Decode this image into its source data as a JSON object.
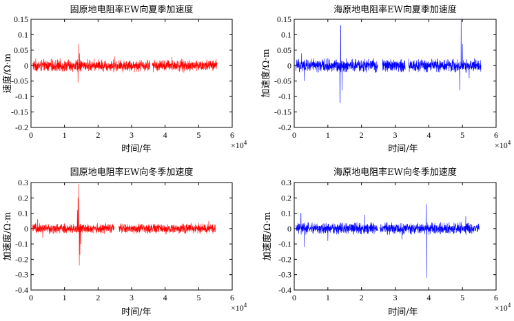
{
  "chart_data": [
    {
      "type": "line",
      "title": "固原地电阻率EW向夏季加速度",
      "xlabel": "时间/年",
      "ylabel": "速度/Ω·m",
      "x_multiplier": "×10",
      "x_multiplier_exp": "4",
      "xlim": [
        0,
        6
      ],
      "ylim": [
        -0.2,
        0.15
      ],
      "xticks": [
        "0",
        "1",
        "2",
        "3",
        "4",
        "5",
        "6"
      ],
      "yticks": [
        "0.15",
        "0.1",
        "0.05",
        "0",
        "-0.05",
        "-0.1",
        "-0.15",
        "-0.2"
      ],
      "color": "#ff0000",
      "series": [
        {
          "x_end": 5.55,
          "noise": 0.018,
          "gaps": [
            [
              3.55,
              3.62
            ]
          ],
          "spikes": [
            [
              1.42,
              0.07
            ],
            [
              1.4,
              -0.055
            ],
            [
              1.45,
              0.04
            ],
            [
              2.5,
              0.03
            ],
            [
              4.2,
              0.028
            ]
          ]
        }
      ]
    },
    {
      "type": "line",
      "title": "海原地电阻率EW向夏季加速度",
      "xlabel": "时间/年",
      "ylabel": "加速度/Ω·m",
      "x_multiplier": "×10",
      "x_multiplier_exp": "4",
      "xlim": [
        0,
        6
      ],
      "ylim": [
        -0.2,
        0.15
      ],
      "xticks": [
        "0",
        "1",
        "2",
        "3",
        "4",
        "5",
        "6"
      ],
      "yticks": [
        "0.15",
        "0.1",
        "0.05",
        "0",
        "-0.05",
        "-0.1",
        "-0.15",
        "-0.2"
      ],
      "color": "#0000ff",
      "series": [
        {
          "x_end": 5.55,
          "noise": 0.02,
          "gaps": [
            [
              2.48,
              2.62
            ],
            [
              3.3,
              3.4
            ]
          ],
          "spikes": [
            [
              1.38,
              0.13
            ],
            [
              1.36,
              -0.12
            ],
            [
              1.42,
              -0.08
            ],
            [
              4.96,
              0.15
            ],
            [
              4.92,
              -0.08
            ],
            [
              5.0,
              0.07
            ],
            [
              0.3,
              -0.05
            ],
            [
              0.22,
              0.04
            ],
            [
              5.2,
              -0.04
            ]
          ]
        }
      ]
    },
    {
      "type": "line",
      "title": "固原地电阻率EW向冬季加速度",
      "xlabel": "时间/年",
      "ylabel": "加速度/Ω·m",
      "x_multiplier": "×10",
      "x_multiplier_exp": "4",
      "xlim": [
        0,
        6
      ],
      "ylim": [
        -0.4,
        0.3
      ],
      "xticks": [
        "0",
        "1",
        "2",
        "3",
        "4",
        "5",
        "6"
      ],
      "yticks": [
        "0.3",
        "0.2",
        "0.1",
        "0",
        "-0.1",
        "-0.2",
        "-0.3",
        "-0.4"
      ],
      "color": "#ff0000",
      "series": [
        {
          "x_end": 5.5,
          "noise": 0.03,
          "gaps": [
            [
              2.48,
              2.62
            ]
          ],
          "spikes": [
            [
              1.42,
              0.29
            ],
            [
              1.44,
              -0.24
            ],
            [
              1.4,
              0.2
            ],
            [
              1.46,
              -0.17
            ],
            [
              1.38,
              0.12
            ],
            [
              1.48,
              -0.1
            ],
            [
              0.2,
              0.06
            ],
            [
              5.3,
              0.05
            ],
            [
              0.35,
              -0.06
            ]
          ]
        }
      ]
    },
    {
      "type": "line",
      "title": "海原地电阻率EW向冬季加速度",
      "xlabel": "时间/年",
      "ylabel": "加速度/Ω·m",
      "x_multiplier": "×10",
      "x_multiplier_exp": "4",
      "xlim": [
        0,
        6
      ],
      "ylim": [
        -0.4,
        0.3
      ],
      "xticks": [
        "0",
        "1",
        "2",
        "3",
        "4",
        "5",
        "6"
      ],
      "yticks": [
        "0.3",
        "0.2",
        "0.1",
        "0",
        "-0.1",
        "-0.2",
        "-0.3",
        "-0.4"
      ],
      "color": "#0000ff",
      "series": [
        {
          "x_end": 5.5,
          "noise": 0.035,
          "gaps": [
            [
              2.48,
              2.55
            ]
          ],
          "spikes": [
            [
              3.92,
              0.16
            ],
            [
              3.94,
              -0.32
            ],
            [
              0.3,
              -0.12
            ],
            [
              0.2,
              0.1
            ],
            [
              1.0,
              -0.08
            ],
            [
              2.1,
              0.09
            ],
            [
              5.1,
              0.08
            ],
            [
              3.2,
              -0.07
            ]
          ]
        }
      ]
    }
  ]
}
